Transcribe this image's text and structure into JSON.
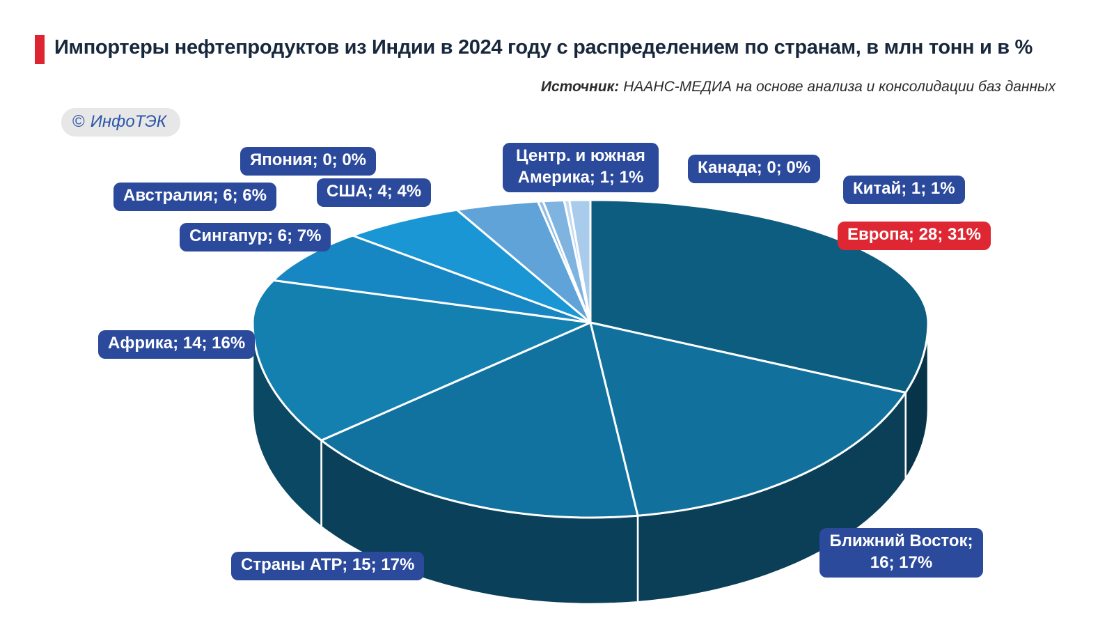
{
  "title": {
    "text": "Импортеры нефтепродуктов из Индии в 2024 году с распределением по странам, в млн тонн и в %"
  },
  "source": {
    "label": "Источник:",
    "text": "НААНС-МЕДИА на основе анализа и консолидации баз данных"
  },
  "logo": {
    "symbol": "©",
    "name": "ИнфоТЭК"
  },
  "colors": {
    "accent_red": "#DE2430",
    "label_pill_blue": "#2B4A9C",
    "label_pill_red": "#DE2733",
    "title_text": "#18283C"
  },
  "chart_data": {
    "type": "pie",
    "style": "3d",
    "title": "Импортеры нефтепродуктов из Индии в 2024 году с распределением по странам, в млн тонн и в %",
    "units": [
      "млн тонн",
      "%"
    ],
    "legend_position": "floating-callouts",
    "slices": [
      {
        "key": "europe",
        "label": "Европа",
        "tonnes": 28,
        "percent": 31,
        "label_text": "Европа; 28; 31%",
        "color": "#0C5D80",
        "label_bg": "#DE2733"
      },
      {
        "key": "mideast",
        "label": "Ближний Восток",
        "tonnes": 16,
        "percent": 17,
        "label_text": "Ближний Восток; 16; 17%",
        "color": "#12719C"
      },
      {
        "key": "atr",
        "label": "Страны АТР",
        "tonnes": 15,
        "percent": 17,
        "label_text": "Страны АТР; 15; 17%",
        "color": "#1172A0"
      },
      {
        "key": "africa",
        "label": "Африка",
        "tonnes": 14,
        "percent": 16,
        "label_text": "Африка; 14; 16%",
        "color": "#1480B0"
      },
      {
        "key": "singapore",
        "label": "Сингапур",
        "tonnes": 6,
        "percent": 7,
        "label_text": "Сингапур; 6; 7%",
        "color": "#1787C3"
      },
      {
        "key": "australia",
        "label": "Австралия",
        "tonnes": 6,
        "percent": 6,
        "label_text": "Австралия; 6; 6%",
        "color": "#1A96D4"
      },
      {
        "key": "usa",
        "label": "США",
        "tonnes": 4,
        "percent": 4,
        "label_text": "США; 4; 4%",
        "color": "#5FA3D8"
      },
      {
        "key": "japan",
        "label": "Япония",
        "tonnes": 0,
        "percent": 0,
        "label_text": "Япония; 0; 0%",
        "color": "#8FBEE7"
      },
      {
        "key": "cs_america",
        "label": "Центр. и южная Америка",
        "tonnes": 1,
        "percent": 1,
        "label_text": "Центр. и южная Америка; 1; 1%",
        "color": "#7FB3E0"
      },
      {
        "key": "canada",
        "label": "Канада",
        "tonnes": 0,
        "percent": 0,
        "label_text": "Канада; 0; 0%",
        "color": "#C2DAF2"
      },
      {
        "key": "china",
        "label": "Китай",
        "tonnes": 1,
        "percent": 1,
        "label_text": "Китай; 1; 1%",
        "color": "#A9CBEC"
      }
    ]
  }
}
